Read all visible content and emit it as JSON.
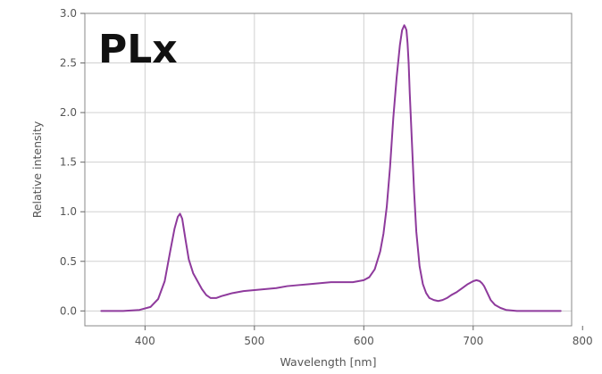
{
  "chart_data": {
    "type": "line",
    "title": "PLx",
    "xlabel": "Wavelength [nm]",
    "ylabel": "Relative intensity",
    "xlim": [
      345,
      790
    ],
    "ylim": [
      -0.15,
      3.0
    ],
    "xticks": [
      400,
      500,
      600,
      700,
      800
    ],
    "yticks": [
      0.0,
      0.5,
      1.0,
      1.5,
      2.0,
      2.5,
      3.0
    ],
    "xtick_labels": [
      "400",
      "500",
      "600",
      "700",
      "800"
    ],
    "ytick_labels": [
      "0.0",
      "0.5",
      "1.0",
      "1.5",
      "2.0",
      "2.5",
      "3.0"
    ],
    "grid": true,
    "series": [
      {
        "color": "#8e3a9c",
        "x": [
          360,
          380,
          395,
          405,
          412,
          418,
          423,
          427,
          430,
          432,
          434,
          437,
          440,
          444,
          448,
          452,
          456,
          460,
          465,
          470,
          480,
          490,
          500,
          510,
          520,
          530,
          540,
          550,
          560,
          570,
          580,
          590,
          595,
          600,
          605,
          610,
          615,
          618,
          621,
          624,
          627,
          630,
          633,
          635,
          637,
          638,
          639,
          640,
          641,
          642,
          644,
          646,
          648,
          651,
          654,
          657,
          660,
          664,
          668,
          672,
          676,
          680,
          685,
          690,
          695,
          700,
          703,
          706,
          708,
          710,
          713,
          716,
          720,
          725,
          730,
          740,
          750,
          760,
          770,
          780
        ],
        "y": [
          0.0,
          0.0,
          0.01,
          0.04,
          0.12,
          0.3,
          0.6,
          0.83,
          0.95,
          0.98,
          0.93,
          0.72,
          0.52,
          0.38,
          0.3,
          0.22,
          0.16,
          0.13,
          0.13,
          0.15,
          0.18,
          0.2,
          0.21,
          0.22,
          0.23,
          0.25,
          0.26,
          0.27,
          0.28,
          0.29,
          0.29,
          0.29,
          0.3,
          0.31,
          0.34,
          0.42,
          0.6,
          0.78,
          1.05,
          1.45,
          1.95,
          2.35,
          2.68,
          2.83,
          2.88,
          2.86,
          2.83,
          2.7,
          2.5,
          2.2,
          1.7,
          1.2,
          0.8,
          0.45,
          0.27,
          0.18,
          0.13,
          0.11,
          0.1,
          0.11,
          0.13,
          0.16,
          0.19,
          0.23,
          0.27,
          0.3,
          0.31,
          0.3,
          0.28,
          0.25,
          0.18,
          0.11,
          0.06,
          0.03,
          0.01,
          0.0,
          0.0,
          0.0,
          0.0,
          0.0
        ]
      }
    ]
  }
}
